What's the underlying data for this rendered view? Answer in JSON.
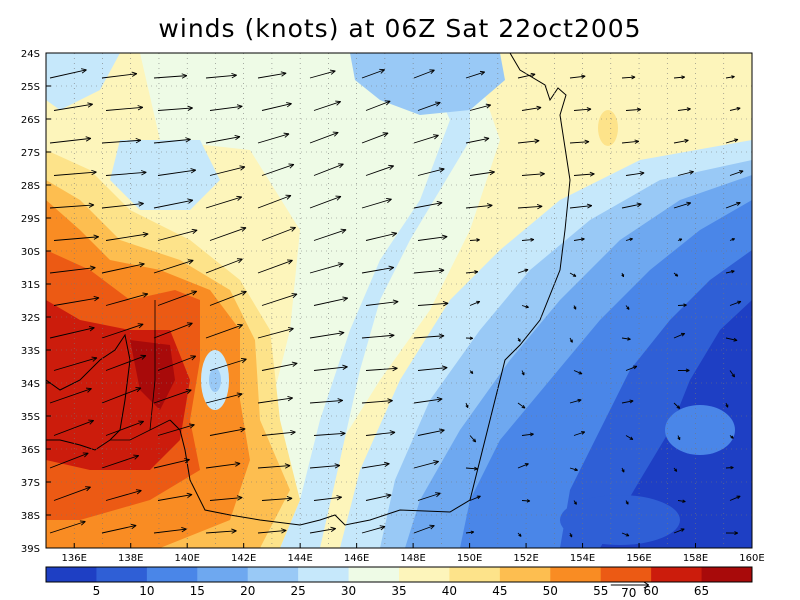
{
  "title": "winds (knots) at 06Z Sat 22oct2005",
  "map": {
    "latitudes": [
      "24S",
      "25S",
      "26S",
      "27S",
      "28S",
      "29S",
      "30S",
      "31S",
      "32S",
      "33S",
      "34S",
      "35S",
      "36S",
      "37S",
      "38S",
      "39S"
    ],
    "longitudes": [
      "136E",
      "138E",
      "140E",
      "142E",
      "144E",
      "146E",
      "148E",
      "150E",
      "152E",
      "154E",
      "156E",
      "158E",
      "160E"
    ],
    "lon_range": [
      135,
      160
    ],
    "lat_range": [
      -24,
      -39
    ],
    "grid": true,
    "coastline": true
  },
  "colorbar": {
    "levels": [
      "5",
      "10",
      "15",
      "20",
      "25",
      "30",
      "35",
      "40",
      "45",
      "50",
      "55",
      "60",
      "65"
    ],
    "colors": [
      "#1e3fc4",
      "#2f5fd6",
      "#4a86e8",
      "#6ea8f0",
      "#99c9f6",
      "#c6e8fb",
      "#eefbe6",
      "#fdf5bb",
      "#fde38a",
      "#fdbe50",
      "#f98c23",
      "#ec5a14",
      "#cc1c0c",
      "#a80a0a"
    ],
    "reference_vector": "70"
  },
  "colors": {
    "grid": "#777777",
    "coast": "#000000",
    "arrow": "#000000"
  }
}
